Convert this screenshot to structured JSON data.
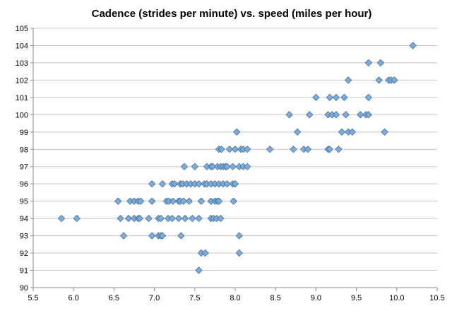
{
  "chart_data": {
    "type": "scatter",
    "title": "Cadence (strides per minute) vs. speed (miles per hour)",
    "xlabel": "",
    "ylabel": "",
    "xlim": [
      5.5,
      10.5
    ],
    "ylim": [
      90,
      105
    ],
    "x_ticks": [
      "5.5",
      "6.0",
      "6.5",
      "7.0",
      "7.5",
      "8.0",
      "8.5",
      "9.0",
      "9.5",
      "10.0",
      "10.5"
    ],
    "y_ticks": [
      "90",
      "91",
      "92",
      "93",
      "94",
      "95",
      "96",
      "97",
      "98",
      "99",
      "100",
      "101",
      "102",
      "103",
      "104",
      "105"
    ],
    "grid": true,
    "legend": "none",
    "marker_color": "#7fabd8",
    "marker_edge_color": "#3f6f9f",
    "points": [
      [
        7.55,
        91
      ],
      [
        7.58,
        92
      ],
      [
        7.63,
        92
      ],
      [
        8.05,
        92
      ],
      [
        6.62,
        93
      ],
      [
        6.97,
        93
      ],
      [
        7.05,
        93
      ],
      [
        7.08,
        93
      ],
      [
        7.1,
        93
      ],
      [
        7.33,
        93
      ],
      [
        8.05,
        93
      ],
      [
        5.85,
        94
      ],
      [
        6.04,
        94
      ],
      [
        6.58,
        94
      ],
      [
        6.68,
        94
      ],
      [
        6.75,
        94
      ],
      [
        6.8,
        94
      ],
      [
        6.82,
        94
      ],
      [
        6.93,
        94
      ],
      [
        7.05,
        94
      ],
      [
        7.08,
        94
      ],
      [
        7.17,
        94
      ],
      [
        7.22,
        94
      ],
      [
        7.3,
        94
      ],
      [
        7.38,
        94
      ],
      [
        7.47,
        94
      ],
      [
        7.55,
        94
      ],
      [
        7.7,
        94
      ],
      [
        7.73,
        94
      ],
      [
        7.77,
        94
      ],
      [
        7.82,
        94
      ],
      [
        6.55,
        95
      ],
      [
        6.7,
        95
      ],
      [
        6.75,
        95
      ],
      [
        6.8,
        95
      ],
      [
        6.83,
        95
      ],
      [
        6.97,
        95
      ],
      [
        7.15,
        95
      ],
      [
        7.18,
        95
      ],
      [
        7.23,
        95
      ],
      [
        7.3,
        95
      ],
      [
        7.32,
        95
      ],
      [
        7.36,
        95
      ],
      [
        7.43,
        95
      ],
      [
        7.58,
        95
      ],
      [
        7.7,
        95
      ],
      [
        7.75,
        95
      ],
      [
        7.78,
        95
      ],
      [
        7.8,
        95
      ],
      [
        7.98,
        95
      ],
      [
        6.97,
        96
      ],
      [
        7.1,
        96
      ],
      [
        7.22,
        96
      ],
      [
        7.25,
        96
      ],
      [
        7.32,
        96
      ],
      [
        7.35,
        96
      ],
      [
        7.4,
        96
      ],
      [
        7.45,
        96
      ],
      [
        7.5,
        96
      ],
      [
        7.55,
        96
      ],
      [
        7.62,
        96
      ],
      [
        7.65,
        96
      ],
      [
        7.7,
        96
      ],
      [
        7.75,
        96
      ],
      [
        7.8,
        96
      ],
      [
        7.85,
        96
      ],
      [
        7.9,
        96
      ],
      [
        7.97,
        96
      ],
      [
        8.0,
        96
      ],
      [
        7.37,
        97
      ],
      [
        7.5,
        97
      ],
      [
        7.65,
        97
      ],
      [
        7.7,
        97
      ],
      [
        7.72,
        97
      ],
      [
        7.78,
        97
      ],
      [
        7.82,
        97
      ],
      [
        7.85,
        97
      ],
      [
        7.88,
        97
      ],
      [
        7.9,
        97
      ],
      [
        7.97,
        97
      ],
      [
        8.05,
        97
      ],
      [
        8.1,
        97
      ],
      [
        8.15,
        97
      ],
      [
        7.8,
        98
      ],
      [
        7.83,
        98
      ],
      [
        7.93,
        98
      ],
      [
        8.0,
        98
      ],
      [
        8.07,
        98
      ],
      [
        8.1,
        98
      ],
      [
        8.15,
        98
      ],
      [
        8.43,
        98
      ],
      [
        8.72,
        98
      ],
      [
        8.85,
        98
      ],
      [
        8.9,
        98
      ],
      [
        9.15,
        98
      ],
      [
        9.17,
        98
      ],
      [
        9.28,
        98
      ],
      [
        8.02,
        99
      ],
      [
        8.77,
        99
      ],
      [
        9.32,
        99
      ],
      [
        9.4,
        99
      ],
      [
        9.45,
        99
      ],
      [
        9.85,
        99
      ],
      [
        8.67,
        100
      ],
      [
        8.92,
        100
      ],
      [
        9.15,
        100
      ],
      [
        9.2,
        100
      ],
      [
        9.25,
        100
      ],
      [
        9.37,
        100
      ],
      [
        9.55,
        100
      ],
      [
        9.62,
        100
      ],
      [
        9.65,
        100
      ],
      [
        9.0,
        101
      ],
      [
        9.17,
        101
      ],
      [
        9.25,
        101
      ],
      [
        9.35,
        101
      ],
      [
        9.65,
        101
      ],
      [
        9.4,
        102
      ],
      [
        9.78,
        102
      ],
      [
        9.9,
        102
      ],
      [
        9.93,
        102
      ],
      [
        9.97,
        102
      ],
      [
        9.65,
        103
      ],
      [
        9.8,
        103
      ],
      [
        10.2,
        104
      ]
    ]
  }
}
